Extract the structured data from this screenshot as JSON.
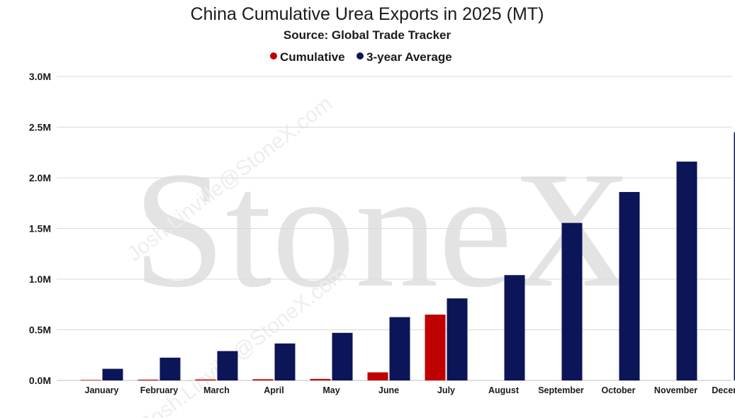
{
  "watermark": {
    "brand": "StoneX",
    "email": "Josh.Linville@StoneX.com"
  },
  "colors": {
    "cumulative": "#c00000",
    "average": "#0c1557"
  },
  "chart_data": {
    "type": "bar",
    "title": "China Cumulative Urea Exports in 2025 (MT)",
    "subtitle": "Source: Global Trade Tracker",
    "legend_position": "top-center",
    "grid": true,
    "xlabel": "",
    "ylabel": "",
    "ylim": [
      0,
      3000000
    ],
    "yticks": [
      0,
      500000,
      1000000,
      1500000,
      2000000,
      2500000,
      3000000
    ],
    "ytick_labels": [
      "0.0M",
      "0.5M",
      "1.0M",
      "1.5M",
      "2.0M",
      "2.5M",
      "3.0M"
    ],
    "categories": [
      "January",
      "February",
      "March",
      "April",
      "May",
      "June",
      "July",
      "August",
      "September",
      "October",
      "November",
      "December"
    ],
    "series": [
      {
        "name": "Cumulative",
        "color": "#c00000",
        "values": [
          5000,
          8000,
          10000,
          12000,
          15000,
          80000,
          650000,
          null,
          null,
          null,
          null,
          null
        ]
      },
      {
        "name": "3-year Average",
        "color": "#0c1557",
        "values": [
          115000,
          225000,
          290000,
          365000,
          470000,
          625000,
          810000,
          1040000,
          1555000,
          1860000,
          2160000,
          2450000
        ]
      }
    ]
  }
}
